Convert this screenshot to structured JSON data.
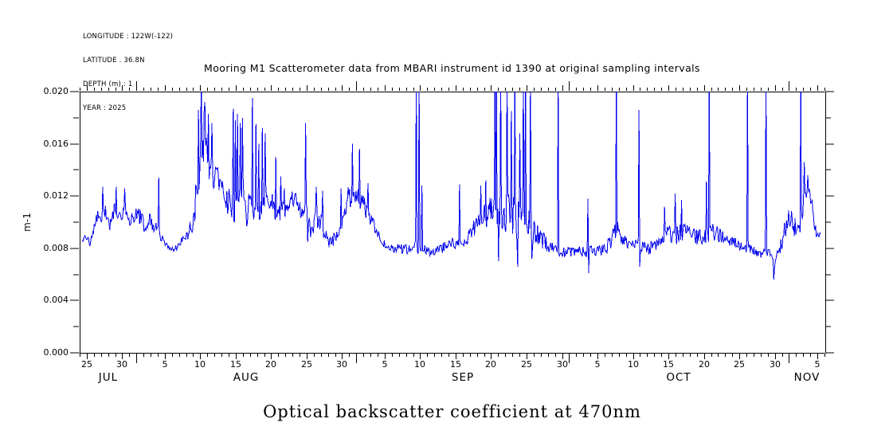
{
  "meta": {
    "line1": "LONGITUDE : 122W(-122)",
    "line2": "LATITUDE . 36.8N",
    "line3": "DEPTH (m) : 1",
    "line4": "YEAR : 2025"
  },
  "title": "Mooring M1 Scatterometer data from MBARI instrument id 1390 at original sampling intervals",
  "caption": "Optical backscatter coefficient at 470nm",
  "chart_data": {
    "type": "line",
    "series_name": "optical backscatter coefficient at 470nm",
    "title": "Mooring M1 Scatterometer data from MBARI instrument id 1390 at original sampling intervals",
    "ylabel": "m-1",
    "ylim": [
      0.0,
      0.02
    ],
    "line_color": "#0000EE",
    "axis_color": "#000000",
    "grid": false,
    "legend": "none",
    "y_ticks": {
      "values": [
        0.0,
        0.004,
        0.008,
        0.012,
        0.016,
        0.02
      ],
      "labels": [
        "0.000",
        "0.004",
        "0.008",
        "0.012",
        "0.016",
        "0.020"
      ],
      "minor_values": [
        0.002,
        0.006,
        0.01,
        0.014,
        0.018
      ]
    },
    "x_axis": {
      "range_days": [
        0,
        105
      ],
      "day_zero_date": "JUL 24",
      "tick_every_days": 1,
      "labeled_days": [
        {
          "day": 1,
          "text": "25"
        },
        {
          "day": 6,
          "text": "30"
        },
        {
          "day": 12,
          "text": "5"
        },
        {
          "day": 17,
          "text": "10"
        },
        {
          "day": 22,
          "text": "15"
        },
        {
          "day": 27,
          "text": "20"
        },
        {
          "day": 32,
          "text": "25"
        },
        {
          "day": 37,
          "text": "30"
        },
        {
          "day": 43,
          "text": "5"
        },
        {
          "day": 48,
          "text": "10"
        },
        {
          "day": 53,
          "text": "15"
        },
        {
          "day": 58,
          "text": "20"
        },
        {
          "day": 63,
          "text": "25"
        },
        {
          "day": 68,
          "text": "30"
        },
        {
          "day": 73,
          "text": "5"
        },
        {
          "day": 78,
          "text": "10"
        },
        {
          "day": 83,
          "text": "15"
        },
        {
          "day": 88,
          "text": "20"
        },
        {
          "day": 93,
          "text": "25"
        },
        {
          "day": 98,
          "text": "30"
        },
        {
          "day": 104,
          "text": "5"
        }
      ],
      "month_start_days": [
        8,
        39,
        69,
        100
      ],
      "month_labels": [
        {
          "day": 4,
          "text": "JUL"
        },
        {
          "day": 23.5,
          "text": "AUG"
        },
        {
          "day": 54,
          "text": "SEP"
        },
        {
          "day": 84.5,
          "text": "OCT"
        },
        {
          "day": 102.5,
          "text": "NOV"
        }
      ]
    },
    "sampling_step_days": 0.1,
    "noise_seed": 20251390,
    "envelope": [
      [
        0.35,
        0.0086,
        0.0002
      ],
      [
        1.0,
        0.0089,
        0.0003
      ],
      [
        1.5,
        0.0083,
        0.0002
      ],
      [
        2.0,
        0.0096,
        0.0004
      ],
      [
        2.6,
        0.0108,
        0.0008
      ],
      [
        3.1,
        0.0102,
        0.0006
      ],
      [
        3.6,
        0.0111,
        0.0008
      ],
      [
        4.2,
        0.0098,
        0.0005
      ],
      [
        5.0,
        0.011,
        0.0008
      ],
      [
        5.6,
        0.0102,
        0.0006
      ],
      [
        6.3,
        0.011,
        0.0008
      ],
      [
        7.0,
        0.01,
        0.0006
      ],
      [
        7.8,
        0.0104,
        0.0007
      ],
      [
        8.5,
        0.0106,
        0.0008
      ],
      [
        9.2,
        0.0097,
        0.0005
      ],
      [
        10.0,
        0.0101,
        0.0007
      ],
      [
        10.8,
        0.0094,
        0.0005
      ],
      [
        11.5,
        0.0089,
        0.0004
      ],
      [
        12.2,
        0.0083,
        0.0003
      ],
      [
        13.0,
        0.008,
        0.0003
      ],
      [
        13.8,
        0.0082,
        0.0004
      ],
      [
        14.6,
        0.0086,
        0.0004
      ],
      [
        15.3,
        0.0091,
        0.0005
      ],
      [
        16.0,
        0.0101,
        0.0008
      ],
      [
        16.5,
        0.0122,
        0.0015
      ],
      [
        17.0,
        0.0152,
        0.0022
      ],
      [
        17.5,
        0.0163,
        0.0025
      ],
      [
        18.0,
        0.015,
        0.002
      ],
      [
        18.6,
        0.0141,
        0.0015
      ],
      [
        19.2,
        0.0135,
        0.0012
      ],
      [
        19.8,
        0.0127,
        0.001
      ],
      [
        20.5,
        0.0117,
        0.001
      ],
      [
        21.2,
        0.0118,
        0.0014
      ],
      [
        21.8,
        0.011,
        0.0016
      ],
      [
        22.4,
        0.0113,
        0.002
      ],
      [
        23.0,
        0.0114,
        0.002
      ],
      [
        23.6,
        0.0111,
        0.0015
      ],
      [
        24.2,
        0.0112,
        0.0012
      ],
      [
        25.0,
        0.0107,
        0.0009
      ],
      [
        25.7,
        0.011,
        0.0008
      ],
      [
        26.3,
        0.0122,
        0.0008
      ],
      [
        27.0,
        0.0116,
        0.0008
      ],
      [
        27.8,
        0.0105,
        0.0007
      ],
      [
        28.6,
        0.0108,
        0.0008
      ],
      [
        29.3,
        0.0111,
        0.0008
      ],
      [
        30.0,
        0.0119,
        0.0007
      ],
      [
        30.7,
        0.0117,
        0.0007
      ],
      [
        31.4,
        0.0106,
        0.0007
      ],
      [
        32.0,
        0.0107,
        0.0008
      ],
      [
        32.7,
        0.009,
        0.0005
      ],
      [
        33.4,
        0.0107,
        0.001
      ],
      [
        34.2,
        0.0096,
        0.001
      ],
      [
        35.0,
        0.0085,
        0.0005
      ],
      [
        35.8,
        0.0085,
        0.0006
      ],
      [
        36.5,
        0.0095,
        0.0007
      ],
      [
        37.3,
        0.0109,
        0.0009
      ],
      [
        38.1,
        0.0121,
        0.001
      ],
      [
        38.9,
        0.0124,
        0.0009
      ],
      [
        39.6,
        0.0117,
        0.0008
      ],
      [
        40.3,
        0.011,
        0.0007
      ],
      [
        41.0,
        0.0103,
        0.0006
      ],
      [
        41.8,
        0.0094,
        0.0004
      ],
      [
        42.5,
        0.0086,
        0.0003
      ],
      [
        43.3,
        0.0082,
        0.0003
      ],
      [
        44.2,
        0.008,
        0.0003
      ],
      [
        45.2,
        0.008,
        0.0004
      ],
      [
        46.2,
        0.0079,
        0.0004
      ],
      [
        47.2,
        0.0081,
        0.0005
      ],
      [
        48.2,
        0.0081,
        0.0005
      ],
      [
        49.2,
        0.0077,
        0.0003
      ],
      [
        50.2,
        0.0078,
        0.0003
      ],
      [
        51.2,
        0.008,
        0.0004
      ],
      [
        52.2,
        0.0083,
        0.0004
      ],
      [
        53.2,
        0.0085,
        0.0005
      ],
      [
        54.2,
        0.0084,
        0.0004
      ],
      [
        55.2,
        0.0091,
        0.0006
      ],
      [
        56.0,
        0.0099,
        0.0008
      ],
      [
        56.8,
        0.0104,
        0.001
      ],
      [
        57.6,
        0.0108,
        0.0011
      ],
      [
        58.4,
        0.011,
        0.0013
      ],
      [
        59.4,
        0.0107,
        0.0017
      ],
      [
        60.4,
        0.011,
        0.0017
      ],
      [
        61.4,
        0.0105,
        0.0019
      ],
      [
        62.4,
        0.01,
        0.0019
      ],
      [
        63.4,
        0.0095,
        0.0014
      ],
      [
        64.4,
        0.009,
        0.0009
      ],
      [
        65.4,
        0.0085,
        0.0007
      ],
      [
        66.4,
        0.0081,
        0.0005
      ],
      [
        67.4,
        0.0078,
        0.0004
      ],
      [
        68.4,
        0.0077,
        0.0004
      ],
      [
        69.4,
        0.0077,
        0.0004
      ],
      [
        70.4,
        0.0078,
        0.0004
      ],
      [
        71.4,
        0.0077,
        0.0004
      ],
      [
        72.4,
        0.0078,
        0.0004
      ],
      [
        73.4,
        0.0078,
        0.0004
      ],
      [
        74.4,
        0.0081,
        0.0005
      ],
      [
        75.2,
        0.009,
        0.0008
      ],
      [
        75.8,
        0.0094,
        0.0007
      ],
      [
        76.4,
        0.0088,
        0.0005
      ],
      [
        77.2,
        0.0085,
        0.0005
      ],
      [
        78.2,
        0.0083,
        0.0005
      ],
      [
        79.2,
        0.0082,
        0.0005
      ],
      [
        80.2,
        0.008,
        0.0005
      ],
      [
        81.2,
        0.0082,
        0.0005
      ],
      [
        82.2,
        0.0088,
        0.0006
      ],
      [
        83.2,
        0.0092,
        0.0007
      ],
      [
        84.2,
        0.009,
        0.0008
      ],
      [
        85.2,
        0.0092,
        0.0007
      ],
      [
        86.2,
        0.009,
        0.0006
      ],
      [
        87.2,
        0.0088,
        0.0006
      ],
      [
        88.2,
        0.009,
        0.0007
      ],
      [
        89.2,
        0.0092,
        0.0007
      ],
      [
        90.2,
        0.009,
        0.0006
      ],
      [
        91.2,
        0.0087,
        0.0006
      ],
      [
        92.2,
        0.0084,
        0.0005
      ],
      [
        93.2,
        0.0081,
        0.0004
      ],
      [
        94.2,
        0.008,
        0.0004
      ],
      [
        95.2,
        0.0078,
        0.0004
      ],
      [
        96.2,
        0.0076,
        0.0004
      ],
      [
        96.9,
        0.0078,
        0.0004
      ],
      [
        97.5,
        0.0072,
        0.0005
      ],
      [
        98.0,
        0.0066,
        0.0004
      ],
      [
        98.5,
        0.0077,
        0.0005
      ],
      [
        99.2,
        0.009,
        0.0007
      ],
      [
        100.0,
        0.0105,
        0.0009
      ],
      [
        100.6,
        0.0098,
        0.0008
      ],
      [
        101.3,
        0.0092,
        0.0006
      ],
      [
        101.9,
        0.0106,
        0.0009
      ],
      [
        102.4,
        0.0126,
        0.0008
      ],
      [
        103.0,
        0.0121,
        0.0007
      ],
      [
        103.6,
        0.0096,
        0.0006
      ],
      [
        104.1,
        0.0088,
        0.0004
      ],
      [
        104.5,
        0.009,
        0.0003
      ]
    ],
    "spikes": [
      [
        3.2,
        0.0127
      ],
      [
        5.1,
        0.0127
      ],
      [
        6.3,
        0.0126
      ],
      [
        11.2,
        0.0134
      ],
      [
        16.8,
        0.0186
      ],
      [
        17.1,
        0.0215
      ],
      [
        17.6,
        0.0192
      ],
      [
        18.1,
        0.0183
      ],
      [
        18.7,
        0.0176
      ],
      [
        21.7,
        0.0187
      ],
      [
        22.0,
        0.0178
      ],
      [
        22.3,
        0.0183
      ],
      [
        22.6,
        0.0176
      ],
      [
        23.0,
        0.018
      ],
      [
        24.4,
        0.0195
      ],
      [
        24.9,
        0.0175
      ],
      [
        25.3,
        0.016
      ],
      [
        25.8,
        0.0172
      ],
      [
        26.2,
        0.0168
      ],
      [
        27.6,
        0.015
      ],
      [
        28.3,
        0.0135
      ],
      [
        28.8,
        0.0126
      ],
      [
        31.8,
        0.0176
      ],
      [
        32.1,
        0.0085
      ],
      [
        33.4,
        0.0127
      ],
      [
        34.2,
        0.0124
      ],
      [
        36.9,
        0.0126
      ],
      [
        38.5,
        0.016
      ],
      [
        39.5,
        0.0156
      ],
      [
        40.6,
        0.013
      ],
      [
        47.5,
        0.0215
      ],
      [
        47.9,
        0.0215
      ],
      [
        48.3,
        0.0128
      ],
      [
        53.5,
        0.0129
      ],
      [
        56.5,
        0.0128
      ],
      [
        57.3,
        0.0132
      ],
      [
        58.5,
        0.0215
      ],
      [
        58.7,
        0.0215
      ],
      [
        59.0,
        0.007
      ],
      [
        59.4,
        0.0215
      ],
      [
        60.3,
        0.0215
      ],
      [
        60.9,
        0.0185
      ],
      [
        61.4,
        0.0215
      ],
      [
        61.8,
        0.0066
      ],
      [
        62.0,
        0.0168
      ],
      [
        62.5,
        0.0215
      ],
      [
        62.9,
        0.0215
      ],
      [
        63.5,
        0.0215
      ],
      [
        63.8,
        0.0072
      ],
      [
        67.4,
        0.0215
      ],
      [
        71.6,
        0.0118
      ],
      [
        71.7,
        0.0061
      ],
      [
        75.6,
        0.0215
      ],
      [
        78.8,
        0.0186
      ],
      [
        78.9,
        0.0066
      ],
      [
        82.4,
        0.0112
      ],
      [
        83.9,
        0.0122
      ],
      [
        84.8,
        0.0117
      ],
      [
        88.3,
        0.0131
      ],
      [
        88.7,
        0.0215
      ],
      [
        94.1,
        0.0215
      ],
      [
        96.7,
        0.0215
      ],
      [
        97.8,
        0.0056
      ],
      [
        101.6,
        0.0215
      ],
      [
        102.1,
        0.0146
      ],
      [
        102.6,
        0.0136
      ]
    ]
  }
}
